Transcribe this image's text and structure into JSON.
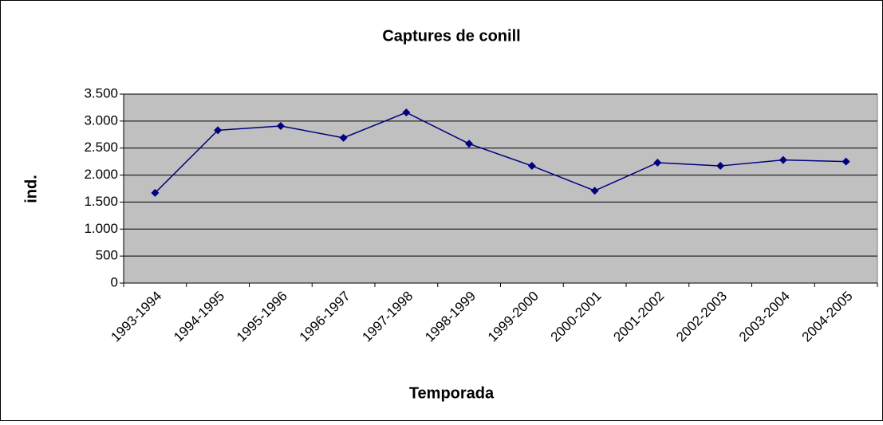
{
  "chart_data": {
    "type": "line",
    "title": "Captures de conill",
    "x_label": "Temporada",
    "y_label": "ind.",
    "categories": [
      "1993-1994",
      "1994-1995",
      "1995-1996",
      "1996-1997",
      "1997-1998",
      "1998-1999",
      "1999-2000",
      "2000-2001",
      "2001-2002",
      "2002-2003",
      "2003-2004",
      "2004-2005"
    ],
    "series": [
      {
        "name": "ind.",
        "color": "#000080",
        "values": [
          1670,
          2830,
          2910,
          2690,
          3160,
          2580,
          2170,
          1710,
          2230,
          2170,
          2280,
          2250
        ]
      }
    ],
    "ylim": [
      0,
      3500
    ],
    "yticks": [
      0,
      500,
      {
        "value": 1000,
        "label": "1.000"
      },
      {
        "value": 1500,
        "label": "1.500"
      },
      {
        "value": 2000,
        "label": "2.000"
      },
      {
        "value": 2500,
        "label": "2.500"
      },
      {
        "value": 3000,
        "label": "3.000"
      },
      {
        "value": 3500,
        "label": "3.500"
      }
    ],
    "grid": true,
    "plot_background": "#c0c0c0"
  }
}
